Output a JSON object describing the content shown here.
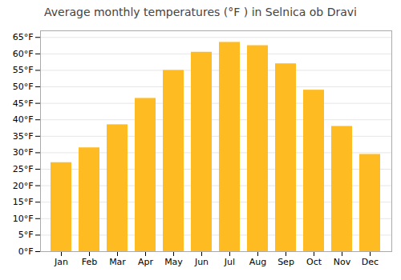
{
  "chart_data": {
    "type": "bar",
    "title": "Average monthly temperatures (°F ) in Selnica ob Dravi",
    "categories": [
      "Jan",
      "Feb",
      "Mar",
      "Apr",
      "May",
      "Jun",
      "Jul",
      "Aug",
      "Sep",
      "Oct",
      "Nov",
      "Dec"
    ],
    "values": [
      27,
      31.5,
      38.5,
      46.5,
      55,
      60.5,
      63.5,
      62.5,
      57,
      49,
      38,
      29.5
    ],
    "color": "#FFBB22",
    "ylim": [
      0,
      67
    ],
    "yticks": [
      {
        "value": 0,
        "label": "0°F"
      },
      {
        "value": 5,
        "label": "5°F"
      },
      {
        "value": 10,
        "label": "10°F"
      },
      {
        "value": 15,
        "label": "15°F"
      },
      {
        "value": 20,
        "label": "20°F"
      },
      {
        "value": 25,
        "label": "25°F"
      },
      {
        "value": 30,
        "label": "30°F"
      },
      {
        "value": 35,
        "label": "35°F"
      },
      {
        "value": 40,
        "label": "40°F"
      },
      {
        "value": 45,
        "label": "45°F"
      },
      {
        "value": 50,
        "label": "50°F"
      },
      {
        "value": 55,
        "label": "55°F"
      },
      {
        "value": 60,
        "label": "60°F"
      },
      {
        "value": 65,
        "label": "65°F"
      }
    ],
    "grid": true
  }
}
